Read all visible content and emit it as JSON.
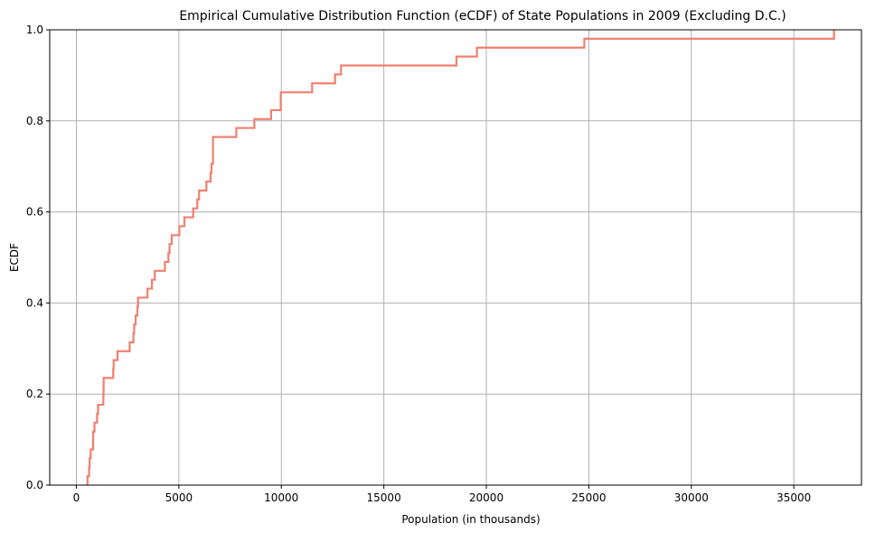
{
  "chart_data": {
    "type": "line",
    "title": "Empirical Cumulative Distribution Function (eCDF) of State Populations in 2009 (Excluding D.C.)",
    "xlabel": "Population (in thousands)",
    "ylabel": "ECDF",
    "xlim": [
      -1300,
      38300
    ],
    "ylim": [
      0,
      1
    ],
    "xticks": [
      0,
      5000,
      10000,
      15000,
      20000,
      25000,
      30000,
      35000
    ],
    "yticks": [
      0.0,
      0.2,
      0.4,
      0.6,
      0.8,
      1.0
    ],
    "grid": true,
    "drawstyle": "steps-post",
    "series": [
      {
        "color": "#f08070",
        "x": [
          544,
          622,
          647,
          698,
          813,
          819,
          885,
          1010,
          1058,
          1316,
          1325,
          1330,
          1797,
          1819,
          2009,
          2600,
          2785,
          2819,
          2892,
          2978,
          3010,
          3470,
          3687,
          3825,
          4318,
          4492,
          4548,
          4651,
          5024,
          5267,
          5699,
          5900,
          5987,
          6342,
          6547,
          6594,
          6664,
          7802,
          8683,
          8900,
          9500,
          9970,
          11500,
          12619,
          12910,
          18540,
          19540,
          24780,
          36962
        ],
        "y": [
          0.0196,
          0.0392,
          0.0588,
          0.0784,
          0.098,
          0.1176,
          0.1373,
          0.1569,
          0.1765,
          0.1961,
          0.2157,
          0.2353,
          0.2549,
          0.2745,
          0.2941,
          0.3137,
          0.3333,
          0.3529,
          0.3725,
          0.3922,
          0.4118,
          0.4314,
          0.451,
          0.4706,
          0.4902,
          0.5098,
          0.5294,
          0.549,
          0.5686,
          0.5882,
          0.6078,
          0.6275,
          0.6471,
          0.6667,
          0.6863,
          0.7059,
          0.7647,
          0.7843,
          0.8039,
          0.8039,
          0.8235,
          0.8627,
          0.8824,
          0.902,
          0.9216,
          0.9412,
          0.9608,
          0.9804,
          1.0
        ]
      }
    ]
  }
}
